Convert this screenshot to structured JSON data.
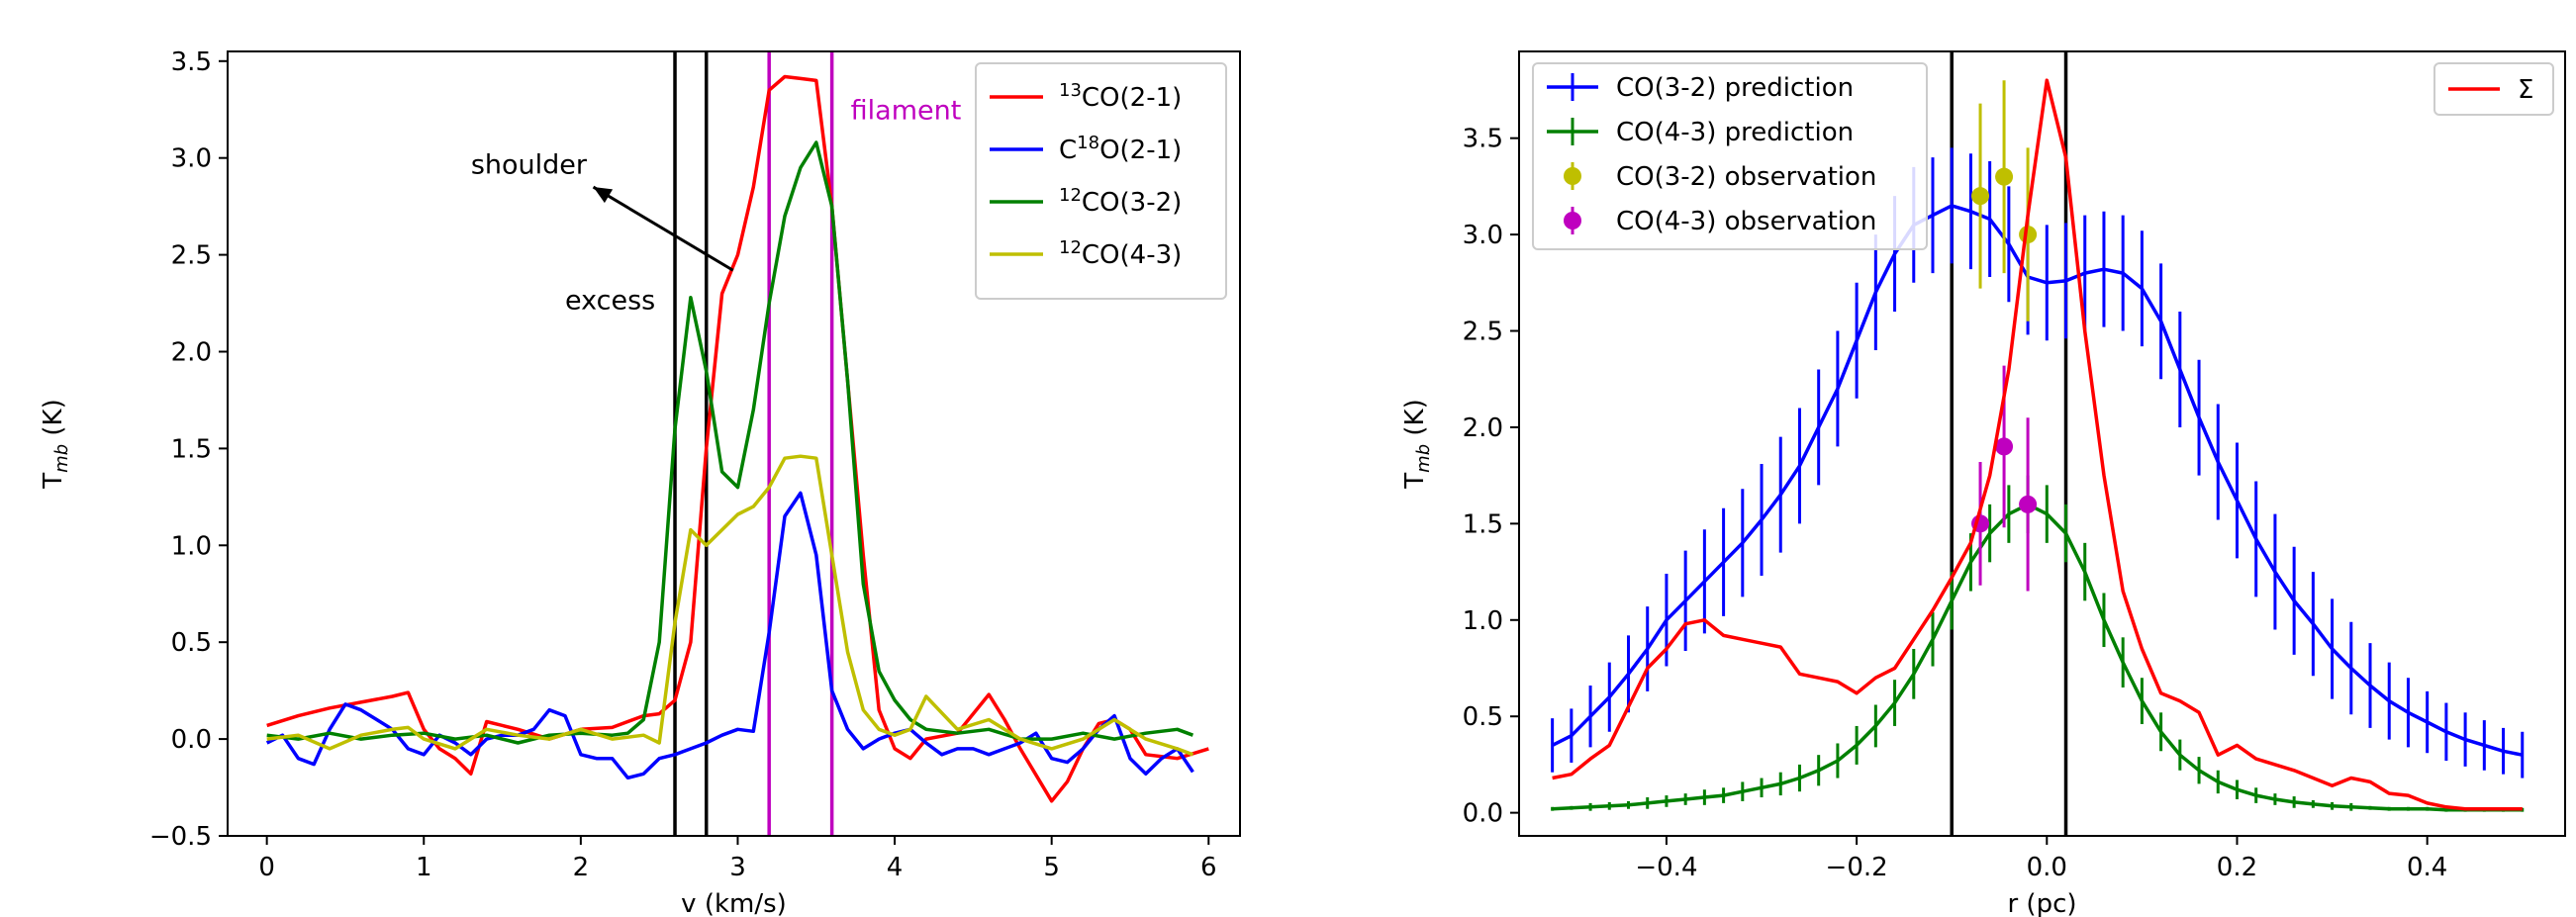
{
  "chart_data": [
    {
      "type": "line",
      "xlabel": "v (km/s)",
      "ylabel": "T",
      "ylabel_sub": "mb",
      "ylabel_unit": "(K)",
      "xlim": [
        -0.25,
        6.2
      ],
      "ylim": [
        -0.5,
        3.55
      ],
      "xticks": [
        0,
        1,
        2,
        3,
        4,
        5,
        6
      ],
      "xtick_labels": [
        "0",
        "1",
        "2",
        "3",
        "4",
        "5",
        "6"
      ],
      "yticks": [
        -0.5,
        0.0,
        0.5,
        1.0,
        1.5,
        2.0,
        2.5,
        3.0,
        3.5
      ],
      "ytick_labels": [
        "−0.5",
        "0.0",
        "0.5",
        "1.0",
        "1.5",
        "2.0",
        "2.5",
        "3.0",
        "3.5"
      ],
      "legend_position": "top-right",
      "series": [
        {
          "name_pre": "13",
          "name_main": "CO(2-1)",
          "name_type": "sup-first",
          "color": "#ff0000",
          "x": [
            0,
            0.2,
            0.4,
            0.6,
            0.8,
            0.9,
            1.0,
            1.1,
            1.2,
            1.3,
            1.4,
            1.6,
            1.8,
            2.0,
            2.2,
            2.4,
            2.5,
            2.6,
            2.7,
            2.8,
            2.9,
            3.0,
            3.1,
            3.2,
            3.3,
            3.4,
            3.5,
            3.6,
            3.7,
            3.8,
            3.9,
            4.0,
            4.1,
            4.2,
            4.4,
            4.6,
            4.7,
            4.8,
            5.0,
            5.1,
            5.2,
            5.3,
            5.4,
            5.5,
            5.6,
            5.8,
            6.0
          ],
          "y": [
            0.07,
            0.12,
            0.16,
            0.19,
            0.22,
            0.24,
            0.05,
            -0.05,
            -0.1,
            -0.18,
            0.09,
            0.05,
            0.0,
            0.05,
            0.06,
            0.12,
            0.13,
            0.2,
            0.5,
            1.5,
            2.3,
            2.5,
            2.85,
            3.35,
            3.42,
            3.41,
            3.4,
            2.75,
            1.85,
            0.95,
            0.15,
            -0.05,
            -0.1,
            0.0,
            0.03,
            0.23,
            0.1,
            -0.05,
            -0.32,
            -0.22,
            -0.05,
            0.08,
            0.1,
            0.05,
            -0.08,
            -0.1,
            -0.05
          ]
        },
        {
          "name_main_pre": "C",
          "name_sup": "18",
          "name_post": "O(2-1)",
          "name_type": "sup-mid",
          "color": "#0000ff",
          "x": [
            0,
            0.1,
            0.2,
            0.3,
            0.4,
            0.5,
            0.6,
            0.7,
            0.8,
            0.9,
            1.0,
            1.1,
            1.2,
            1.3,
            1.4,
            1.5,
            1.6,
            1.7,
            1.8,
            1.9,
            2.0,
            2.1,
            2.2,
            2.3,
            2.4,
            2.5,
            2.6,
            2.7,
            2.8,
            2.9,
            3.0,
            3.1,
            3.2,
            3.3,
            3.4,
            3.5,
            3.6,
            3.7,
            3.8,
            3.9,
            4.0,
            4.1,
            4.2,
            4.3,
            4.4,
            4.5,
            4.6,
            4.7,
            4.8,
            4.9,
            5.0,
            5.1,
            5.2,
            5.3,
            5.4,
            5.5,
            5.6,
            5.7,
            5.8,
            5.9
          ],
          "y": [
            -0.02,
            0.02,
            -0.1,
            -0.13,
            0.05,
            0.18,
            0.15,
            0.1,
            0.05,
            -0.05,
            -0.08,
            0.02,
            -0.02,
            -0.08,
            0.0,
            0.02,
            0.02,
            0.05,
            0.15,
            0.12,
            -0.08,
            -0.1,
            -0.1,
            -0.2,
            -0.18,
            -0.1,
            -0.08,
            -0.05,
            -0.02,
            0.02,
            0.05,
            0.04,
            0.55,
            1.15,
            1.27,
            0.95,
            0.25,
            0.05,
            -0.05,
            0.0,
            0.03,
            0.05,
            -0.02,
            -0.08,
            -0.05,
            -0.05,
            -0.08,
            -0.05,
            -0.02,
            0.03,
            -0.1,
            -0.12,
            -0.05,
            0.05,
            0.12,
            -0.1,
            -0.18,
            -0.1,
            -0.05,
            -0.17
          ]
        },
        {
          "name_pre": "12",
          "name_main": "CO(3-2)",
          "name_type": "sup-first",
          "color": "#008000",
          "x": [
            0,
            0.2,
            0.4,
            0.6,
            0.8,
            1.0,
            1.2,
            1.4,
            1.6,
            1.8,
            2.0,
            2.2,
            2.3,
            2.4,
            2.5,
            2.6,
            2.7,
            2.8,
            2.9,
            3.0,
            3.1,
            3.2,
            3.3,
            3.4,
            3.5,
            3.6,
            3.7,
            3.8,
            3.9,
            4.0,
            4.1,
            4.2,
            4.4,
            4.6,
            4.8,
            5.0,
            5.2,
            5.4,
            5.6,
            5.8,
            5.9
          ],
          "y": [
            0.02,
            0.0,
            0.03,
            0.0,
            0.02,
            0.03,
            0.0,
            0.02,
            -0.02,
            0.02,
            0.03,
            0.02,
            0.03,
            0.1,
            0.5,
            1.6,
            2.28,
            1.9,
            1.38,
            1.3,
            1.7,
            2.25,
            2.7,
            2.95,
            3.08,
            2.75,
            1.85,
            0.8,
            0.35,
            0.2,
            0.1,
            0.05,
            0.03,
            0.05,
            0.0,
            0.0,
            0.03,
            0.0,
            0.03,
            0.05,
            0.02
          ]
        },
        {
          "name_pre": "12",
          "name_main": "CO(4-3)",
          "name_type": "sup-first",
          "color": "#bfbf00",
          "x": [
            0,
            0.2,
            0.4,
            0.6,
            0.8,
            0.9,
            1.0,
            1.2,
            1.4,
            1.6,
            1.8,
            2.0,
            2.2,
            2.4,
            2.5,
            2.6,
            2.7,
            2.8,
            2.9,
            3.0,
            3.1,
            3.2,
            3.3,
            3.4,
            3.5,
            3.6,
            3.7,
            3.8,
            3.9,
            4.0,
            4.1,
            4.2,
            4.4,
            4.6,
            4.8,
            5.0,
            5.2,
            5.4,
            5.6,
            5.8,
            5.9
          ],
          "y": [
            0.0,
            0.02,
            -0.05,
            0.02,
            0.05,
            0.06,
            0.0,
            -0.05,
            0.05,
            0.02,
            0.0,
            0.05,
            0.0,
            0.02,
            -0.02,
            0.6,
            1.08,
            1.0,
            1.08,
            1.16,
            1.2,
            1.3,
            1.45,
            1.46,
            1.45,
            0.95,
            0.45,
            0.15,
            0.05,
            0.02,
            0.05,
            0.22,
            0.05,
            0.1,
            0.0,
            -0.05,
            0.0,
            0.1,
            0.0,
            -0.05,
            -0.08
          ]
        }
      ],
      "vlines": [
        {
          "x": 2.6,
          "color": "#000000"
        },
        {
          "x": 2.8,
          "color": "#000000"
        },
        {
          "x": 3.2,
          "color": "#bf00bf"
        },
        {
          "x": 3.6,
          "color": "#bf00bf"
        }
      ],
      "annotations": [
        {
          "text": "shoulder",
          "x": 1.3,
          "y": 2.92,
          "color": "#000000"
        },
        {
          "text": "excess",
          "x": 1.9,
          "y": 2.22,
          "color": "#000000"
        },
        {
          "text": "filament",
          "x": 3.72,
          "y": 3.2,
          "color": "#bf00bf"
        }
      ],
      "arrow": {
        "from": [
          2.97,
          2.42
        ],
        "to": [
          2.08,
          2.85
        ],
        "color": "#000000"
      }
    },
    {
      "type": "line",
      "xlabel": "r (pc)",
      "ylabel": "T",
      "ylabel_sub": "mb",
      "ylabel_unit": "(K)",
      "xlim": [
        -0.555,
        0.545
      ],
      "ylim": [
        -0.12,
        3.95
      ],
      "xticks": [
        -0.4,
        -0.2,
        0.0,
        0.2,
        0.4
      ],
      "xtick_labels": [
        "−0.4",
        "−0.2",
        "0.0",
        "0.2",
        "0.4"
      ],
      "yticks": [
        0.0,
        0.5,
        1.0,
        1.5,
        2.0,
        2.5,
        3.0,
        3.5
      ],
      "ytick_labels": [
        "0.0",
        "0.5",
        "1.0",
        "1.5",
        "2.0",
        "2.5",
        "3.0",
        "3.5"
      ],
      "legend_position": "top-left",
      "legend2_position": "top-right",
      "series": [
        {
          "name": "CO(3-2) prediction",
          "color": "#0000ff",
          "errorbars": true,
          "x": [
            -0.52,
            -0.5,
            -0.48,
            -0.46,
            -0.44,
            -0.42,
            -0.4,
            -0.38,
            -0.36,
            -0.34,
            -0.32,
            -0.3,
            -0.28,
            -0.26,
            -0.24,
            -0.22,
            -0.2,
            -0.18,
            -0.16,
            -0.14,
            -0.12,
            -0.1,
            -0.08,
            -0.06,
            -0.04,
            -0.02,
            0.0,
            0.02,
            0.04,
            0.06,
            0.08,
            0.1,
            0.12,
            0.14,
            0.16,
            0.18,
            0.2,
            0.22,
            0.24,
            0.26,
            0.28,
            0.3,
            0.32,
            0.34,
            0.36,
            0.38,
            0.4,
            0.42,
            0.44,
            0.46,
            0.48,
            0.5
          ],
          "y": [
            0.35,
            0.4,
            0.5,
            0.6,
            0.72,
            0.85,
            1.0,
            1.1,
            1.2,
            1.3,
            1.4,
            1.52,
            1.65,
            1.8,
            2.0,
            2.2,
            2.45,
            2.7,
            2.9,
            3.05,
            3.1,
            3.15,
            3.12,
            3.08,
            2.95,
            2.78,
            2.75,
            2.76,
            2.8,
            2.82,
            2.8,
            2.72,
            2.55,
            2.3,
            2.05,
            1.82,
            1.62,
            1.42,
            1.25,
            1.1,
            0.98,
            0.85,
            0.75,
            0.66,
            0.58,
            0.52,
            0.47,
            0.42,
            0.38,
            0.35,
            0.32,
            0.3
          ],
          "err": [
            0.14,
            0.14,
            0.16,
            0.18,
            0.2,
            0.22,
            0.24,
            0.26,
            0.27,
            0.28,
            0.28,
            0.29,
            0.3,
            0.3,
            0.3,
            0.3,
            0.3,
            0.3,
            0.3,
            0.3,
            0.3,
            0.3,
            0.3,
            0.3,
            0.3,
            0.3,
            0.3,
            0.3,
            0.3,
            0.3,
            0.3,
            0.3,
            0.3,
            0.3,
            0.3,
            0.3,
            0.3,
            0.3,
            0.3,
            0.28,
            0.27,
            0.26,
            0.24,
            0.22,
            0.2,
            0.18,
            0.16,
            0.15,
            0.14,
            0.13,
            0.12,
            0.12
          ]
        },
        {
          "name": "CO(4-3) prediction",
          "color": "#008000",
          "errorbars": true,
          "x": [
            -0.52,
            -0.5,
            -0.48,
            -0.46,
            -0.44,
            -0.42,
            -0.4,
            -0.38,
            -0.36,
            -0.34,
            -0.32,
            -0.3,
            -0.28,
            -0.26,
            -0.24,
            -0.22,
            -0.2,
            -0.18,
            -0.16,
            -0.14,
            -0.12,
            -0.1,
            -0.08,
            -0.06,
            -0.04,
            -0.02,
            0.0,
            0.02,
            0.04,
            0.06,
            0.08,
            0.1,
            0.12,
            0.14,
            0.16,
            0.18,
            0.2,
            0.22,
            0.24,
            0.26,
            0.28,
            0.3,
            0.32,
            0.34,
            0.36,
            0.38,
            0.4,
            0.42,
            0.44,
            0.46,
            0.48,
            0.5
          ],
          "y": [
            0.02,
            0.025,
            0.03,
            0.035,
            0.04,
            0.05,
            0.06,
            0.07,
            0.08,
            0.09,
            0.11,
            0.13,
            0.15,
            0.18,
            0.22,
            0.27,
            0.35,
            0.45,
            0.57,
            0.72,
            0.9,
            1.1,
            1.3,
            1.45,
            1.55,
            1.6,
            1.55,
            1.45,
            1.25,
            1.0,
            0.78,
            0.58,
            0.42,
            0.3,
            0.22,
            0.16,
            0.12,
            0.09,
            0.07,
            0.055,
            0.045,
            0.035,
            0.03,
            0.025,
            0.02,
            0.02,
            0.02,
            0.015,
            0.015,
            0.015,
            0.015,
            0.015
          ],
          "err": [
            0.01,
            0.01,
            0.02,
            0.02,
            0.02,
            0.03,
            0.03,
            0.03,
            0.04,
            0.04,
            0.05,
            0.05,
            0.06,
            0.07,
            0.08,
            0.09,
            0.1,
            0.11,
            0.12,
            0.13,
            0.14,
            0.15,
            0.15,
            0.15,
            0.15,
            0.15,
            0.15,
            0.15,
            0.15,
            0.14,
            0.13,
            0.12,
            0.1,
            0.08,
            0.07,
            0.06,
            0.05,
            0.04,
            0.03,
            0.03,
            0.02,
            0.02,
            0.02,
            0.01,
            0.01,
            0.01,
            0.01,
            0.01,
            0.01,
            0.01,
            0.01,
            0.01
          ]
        },
        {
          "name": "CO(3-2) observation",
          "color": "#bfbf00",
          "markers": true,
          "x": [
            -0.07,
            -0.045,
            -0.02
          ],
          "y": [
            3.2,
            3.3,
            3.0
          ],
          "err": [
            0.48,
            0.5,
            0.45
          ]
        },
        {
          "name": "CO(4-3) observation",
          "color": "#bf00bf",
          "markers": true,
          "x": [
            -0.07,
            -0.045,
            -0.02
          ],
          "y": [
            1.5,
            1.9,
            1.6
          ],
          "err": [
            0.32,
            0.42,
            0.45
          ]
        },
        {
          "name": "Σ",
          "color": "#ff0000",
          "legend": 2,
          "x": [
            -0.52,
            -0.5,
            -0.48,
            -0.46,
            -0.44,
            -0.42,
            -0.4,
            -0.38,
            -0.36,
            -0.34,
            -0.32,
            -0.3,
            -0.28,
            -0.26,
            -0.24,
            -0.22,
            -0.2,
            -0.18,
            -0.16,
            -0.14,
            -0.12,
            -0.1,
            -0.08,
            -0.06,
            -0.04,
            -0.02,
            0.0,
            0.02,
            0.04,
            0.06,
            0.08,
            0.1,
            0.12,
            0.14,
            0.16,
            0.18,
            0.2,
            0.22,
            0.24,
            0.26,
            0.28,
            0.3,
            0.32,
            0.34,
            0.36,
            0.38,
            0.4,
            0.42,
            0.44,
            0.46,
            0.48,
            0.5
          ],
          "y": [
            0.18,
            0.2,
            0.28,
            0.35,
            0.55,
            0.75,
            0.85,
            0.98,
            1.0,
            0.92,
            0.9,
            0.88,
            0.86,
            0.72,
            0.7,
            0.68,
            0.62,
            0.7,
            0.75,
            0.9,
            1.05,
            1.22,
            1.4,
            1.75,
            2.3,
            3.1,
            3.8,
            3.4,
            2.5,
            1.75,
            1.15,
            0.85,
            0.62,
            0.58,
            0.52,
            0.3,
            0.35,
            0.28,
            0.25,
            0.22,
            0.18,
            0.14,
            0.18,
            0.16,
            0.1,
            0.09,
            0.05,
            0.03,
            0.02,
            0.02,
            0.02,
            0.02
          ]
        }
      ],
      "vlines": [
        {
          "x": -0.1,
          "color": "#000000"
        },
        {
          "x": 0.02,
          "color": "#000000"
        }
      ]
    }
  ]
}
